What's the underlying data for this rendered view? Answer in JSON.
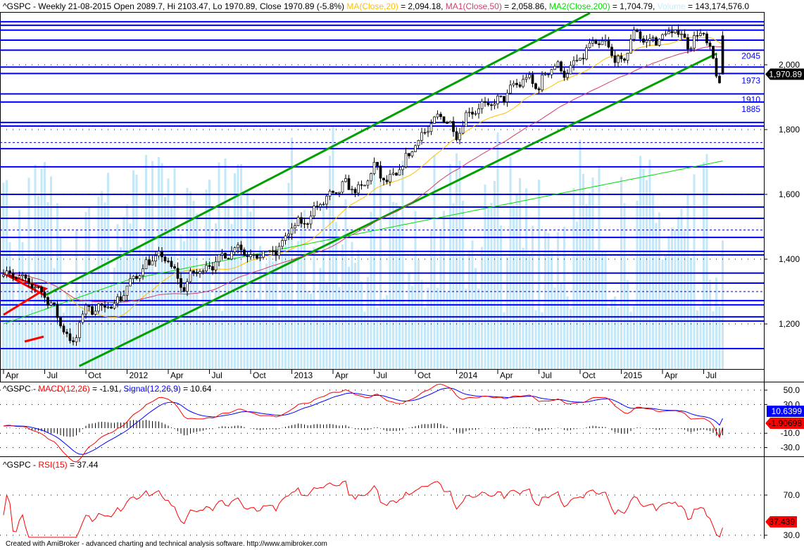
{
  "header": {
    "symbol": "^GSPC",
    "desc": " - Weekly 21-08-2015 Open 2089.7, Hi 2103.47, Lo 1970.89, Close 1970.89 (-5.8%) ",
    "ma20_label": "MA(Close,20)",
    "ma20_value": " = 2,094.18, ",
    "ma50_label": "MA1(Close,50)",
    "ma50_value": " = 2,058.86, ",
    "ma200_label": "MA2(Close,200)",
    "ma200_value": " = 1,704.79, ",
    "volume_label": "Volume",
    "volume_value": " = 143,174,576.0"
  },
  "macd_header": {
    "symbol": "^GSPC - ",
    "macd_label": "MACD(12,26)",
    "macd_value": " = -1.91, ",
    "signal_label": "Signal(12,26,9)",
    "signal_value": " = 10.64"
  },
  "rsi_header": {
    "symbol": "^GSPC - ",
    "rsi_label": "RSI(15)",
    "rsi_value": " = 37.44"
  },
  "footer": "Created with AmiBroker - advanced charting and technical analysis software. http://www.amibroker.com",
  "colors": {
    "ma20": "#ffbf00",
    "ma50": "#d0406a",
    "ma200": "#00dd00",
    "volume": "#c4e8f7",
    "levels": "#0000ff",
    "channel": "#00a000",
    "macd": "#ff0000",
    "signal": "#0000ff",
    "rsi": "#ff0000"
  },
  "chart_data": [
    {
      "type": "candlestick",
      "title": "^GSPC - Weekly",
      "period": "weekly",
      "monthly_closes_from_2011_04": [
        1363,
        1345,
        1321,
        1292,
        1219,
        1131,
        1253,
        1247,
        1258,
        1312,
        1366,
        1408,
        1398,
        1310,
        1362,
        1379,
        1406,
        1441,
        1412,
        1416,
        1426,
        1498,
        1515,
        1569,
        1598,
        1631,
        1606,
        1686,
        1633,
        1682,
        1757,
        1806,
        1848,
        1783,
        1859,
        1872,
        1884,
        1924,
        1960,
        1931,
        2003,
        1972,
        2018,
        2068,
        2059,
        1995,
        2105,
        2068,
        2086,
        2107,
        2063,
        2104,
        1971
      ],
      "last_bar": {
        "open": 2089.7,
        "high": 2103.47,
        "low": 1970.89,
        "close": 1970.89
      },
      "x_tick_labels": [
        "Apr",
        "Jul",
        "Oct",
        "2012",
        "Apr",
        "Jul",
        "Oct",
        "2013",
        "Apr",
        "Jul",
        "Oct",
        "2014",
        "Apr",
        "Jul",
        "Oct",
        "2015",
        "Apr",
        "Jul"
      ],
      "y_ticks": [
        "2,000",
        "1,800",
        "1,600",
        "1,400",
        "1,200"
      ],
      "y_tick_values": [
        2000,
        1800,
        1600,
        1400,
        1200
      ],
      "ylim": [
        1080,
        2160
      ],
      "last_price_label": "1,970.89",
      "horizontal_levels": [
        2133,
        2122,
        2107,
        2076,
        2045,
        1993,
        1973,
        1910,
        1885,
        1822,
        1811,
        1741,
        1685,
        1600,
        1561,
        1526,
        1467,
        1424,
        1413,
        1357,
        1326,
        1272,
        1259,
        1222,
        1209,
        1124
      ],
      "level_labels": [
        {
          "value": 2045,
          "text": "2045"
        },
        {
          "value": 1973,
          "text": "1973"
        },
        {
          "value": 1910,
          "text": "1910"
        },
        {
          "value": 1885,
          "text": "1885"
        }
      ],
      "channel_upper": [
        [
          2011.55,
          1290
        ],
        [
          2014.85,
          2160
        ]
      ],
      "channel_lower": [
        [
          2011.75,
          1070
        ],
        [
          2015.62,
          2035
        ]
      ]
    },
    {
      "type": "line",
      "title": "MACD(12,26)",
      "series": [
        {
          "name": "MACD(12,26)",
          "last": -1.91
        },
        {
          "name": "Signal(12,26,9)",
          "last": 10.64
        }
      ],
      "y_ticks": [
        "50.0",
        "30.0",
        "-10.0",
        "-30.0"
      ],
      "y_tick_values": [
        50,
        30,
        -10,
        -30
      ],
      "ylim": [
        -48,
        58
      ],
      "value_labels": [
        "10.6399",
        "-1.90698"
      ]
    },
    {
      "type": "line",
      "title": "RSI(15)",
      "series": [
        {
          "name": "RSI(15)",
          "last": 37.44
        }
      ],
      "y_ticks": [
        "70.0",
        "30.0"
      ],
      "y_tick_values": [
        70,
        30
      ],
      "ylim": [
        26,
        107
      ],
      "value_label": "37.439"
    }
  ]
}
